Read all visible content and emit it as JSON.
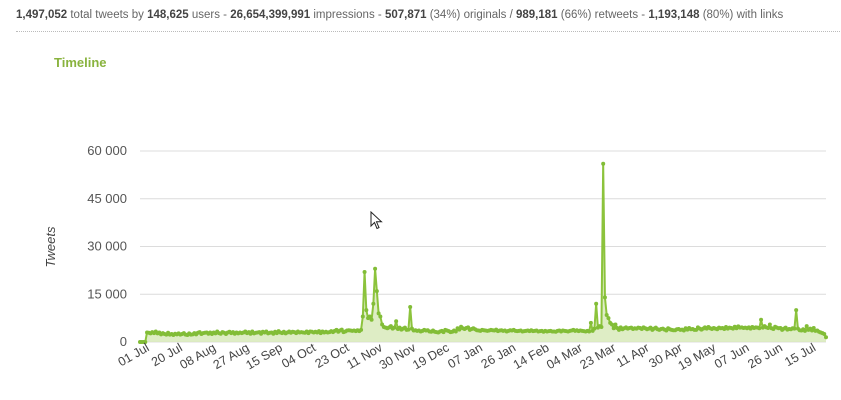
{
  "stats": {
    "tweets": "1,497,052",
    "tweets_label": " total tweets by ",
    "users": "148,625",
    "users_label": " users - ",
    "impressions": "26,654,399,991",
    "impressions_label": " impressions - ",
    "originals": "507,871",
    "originals_label": " (34%) originals / ",
    "retweets": "989,181",
    "retweets_label": " (66%) retweets - ",
    "links": "1,193,148",
    "links_label": " (80%) with links"
  },
  "colors": {
    "accent": "#89b33e",
    "line": "#8cc33c",
    "fill": "#d8eabb",
    "grid": "#dcdcdc"
  },
  "icons": {
    "cursor": "mouse-pointer-icon"
  },
  "chart_data": {
    "type": "area",
    "title": "Timeline",
    "ylabel": "Tweets",
    "xlabel": "",
    "ylim": [
      0,
      60000
    ],
    "yticks": [
      0,
      15000,
      30000,
      45000,
      60000
    ],
    "ytick_labels": [
      "0",
      "15 000",
      "30 000",
      "45 000",
      "60 000"
    ],
    "xtick_labels": [
      "01 Jul",
      "20 Jul",
      "08 Aug",
      "27 Aug",
      "15 Sep",
      "04 Oct",
      "23 Oct",
      "11 Nov",
      "30 Nov",
      "19 Dec",
      "07 Jan",
      "26 Jan",
      "14 Feb",
      "04 Mar",
      "23 Mar",
      "11 Apr",
      "30 Apr",
      "19 May",
      "07 Jun",
      "26 Jun",
      "15 Jul"
    ],
    "x_start": "01 Jul",
    "x_step_days": 1,
    "grid": true,
    "series": [
      {
        "values": [
          0,
          0,
          0,
          0,
          3000,
          2900,
          2700,
          3100,
          2800,
          3300,
          2700,
          3000,
          2400,
          2800,
          2500,
          2300,
          2900,
          2300,
          2500,
          2200,
          2600,
          2400,
          2700,
          2300,
          2500,
          2800,
          2300,
          2200,
          2700,
          2300,
          2400,
          2800,
          2400,
          2900,
          3100,
          2500,
          2800,
          2900,
          3000,
          2600,
          3000,
          2500,
          3000,
          2700,
          3300,
          2800,
          2600,
          3100,
          2900,
          2500,
          3000,
          3200,
          2800,
          3100,
          2600,
          3000,
          2700,
          3000,
          2800,
          3000,
          3300,
          2800,
          3100,
          2600,
          3300,
          2700,
          2900,
          3000,
          3100,
          2600,
          3200,
          3000,
          3300,
          2700,
          2900,
          3000,
          2600,
          3200,
          2800,
          3400,
          3000,
          2800,
          3200,
          2700,
          3000,
          3300,
          2900,
          3200,
          3100,
          2800,
          3300,
          3000,
          3100,
          3000,
          2900,
          3300,
          2800,
          3300,
          3200,
          3000,
          3200,
          3000,
          3400,
          2800,
          3300,
          3000,
          3200,
          3000,
          3100,
          3400,
          3100,
          3500,
          3800,
          3200,
          3600,
          3900,
          3100,
          3300,
          3600,
          3700,
          3600,
          3500,
          3600,
          3400,
          3700,
          3400,
          3800,
          8000,
          22000,
          10000,
          7500,
          8000,
          7000,
          12000,
          23000,
          16000,
          9000,
          8000,
          5500,
          4700,
          4500,
          4300,
          4600,
          5000,
          4200,
          4500,
          6500,
          4100,
          4500,
          3900,
          4200,
          4500,
          3800,
          3900,
          11000,
          4200,
          3600,
          3700,
          3500,
          3600,
          3300,
          3500,
          3800,
          3600,
          3700,
          3300,
          3200,
          3600,
          3200,
          3100,
          3000,
          3300,
          3500,
          3100,
          3800,
          3600,
          3400,
          3100,
          3200,
          3600,
          3300,
          4300,
          3900,
          4800,
          4300,
          4100,
          4400,
          4600,
          3800,
          4100,
          4300,
          4000,
          3700,
          3600,
          3500,
          3800,
          3700,
          3600,
          3500,
          3600,
          3800,
          3700,
          3600,
          3900,
          3400,
          3600,
          3700,
          3500,
          3600,
          3300,
          3500,
          3700,
          3600,
          3800,
          3500,
          3400,
          3500,
          3600,
          3300,
          3400,
          3500,
          3600,
          3400,
          3700,
          3400,
          3500,
          3600,
          3300,
          3400,
          3500,
          3200,
          3500,
          3300,
          3400,
          3500,
          3300,
          3300,
          3200,
          3500,
          3600,
          3300,
          3600,
          3500,
          3400,
          3300,
          3500,
          3600,
          3800,
          3500,
          3700,
          3400,
          3600,
          3500,
          3400,
          3300,
          3500,
          3300,
          6000,
          3500,
          4200,
          12000,
          4500,
          5000,
          4700,
          56000,
          14000,
          8500,
          7500,
          6000,
          5500,
          4300,
          5500,
          4400,
          3800,
          4600,
          4000,
          4300,
          4600,
          4200,
          4400,
          4500,
          4100,
          4300,
          4200,
          4500,
          4400,
          4100,
          4600,
          4300,
          4000,
          4200,
          4500,
          3800,
          4200,
          4500,
          4000,
          3800,
          4100,
          4200,
          3900,
          3600,
          4300,
          4000,
          3800,
          3700,
          3700,
          4000,
          4100,
          3800,
          3900,
          3600,
          4300,
          3900,
          4400,
          4000,
          4100,
          3800,
          3800,
          4600,
          4200,
          3900,
          4200,
          4600,
          4200,
          4700,
          4300,
          4100,
          4400,
          4200,
          4000,
          4500,
          4300,
          4400,
          4100,
          4700,
          4200,
          4500,
          4400,
          4200,
          4800,
          4300,
          4900,
          4500,
          4600,
          4400,
          4500,
          4300,
          4600,
          4200,
          4700,
          4400,
          4600,
          4500,
          4300,
          7000,
          4500,
          5000,
          4600,
          4400,
          5500,
          4300,
          4100,
          4800,
          4500,
          4300,
          4400,
          3800,
          4200,
          4500,
          3900,
          4100,
          4000,
          4300,
          4200,
          10000,
          4200,
          3700,
          3600,
          4000,
          3500,
          5000,
          3800,
          4200,
          3600,
          4400,
          3500,
          3600,
          3200,
          3000,
          2800,
          2500,
          1500
        ]
      }
    ]
  }
}
